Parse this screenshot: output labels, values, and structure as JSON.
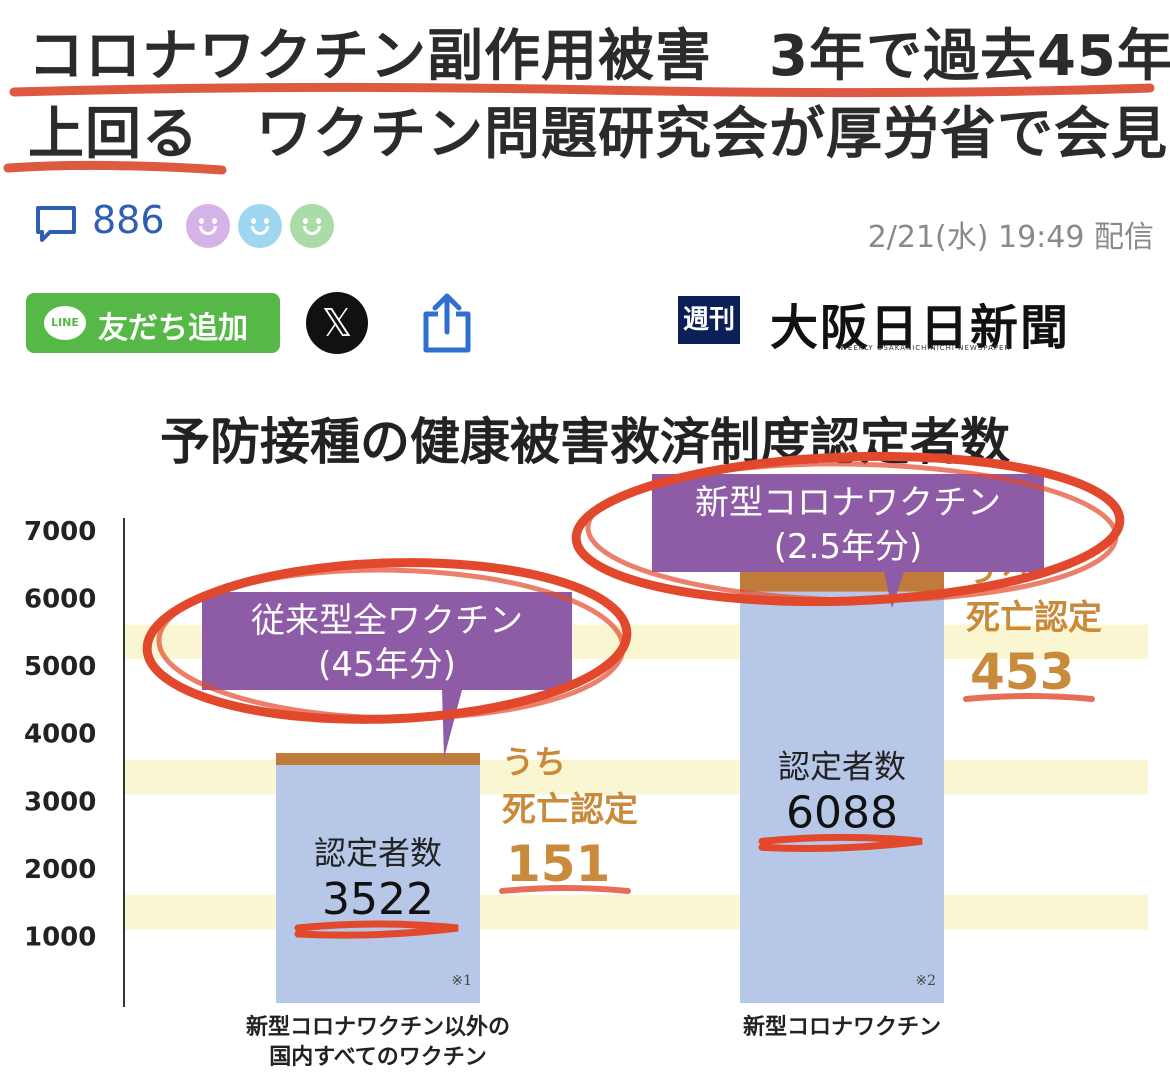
{
  "article": {
    "headline_line1": "コロナワクチン副作用被害　3年で過去45年",
    "headline_line2": "上回る　ワクチン問題研究会が厚労省で会見",
    "comment_count": "886",
    "date": "2/21(水) 19:49 配信",
    "line_button_label": "友だち追加",
    "line_logo_text": "LINE",
    "x_button_label": "𝕏",
    "publisher_weekly": "週刊",
    "publisher_name": "大阪日日新聞",
    "publisher_subtitle": "WEEKLY OSAKANICHINICHI NEWSPAPER"
  },
  "colors": {
    "headline_underline": "#d9472c",
    "bar_fill": "#b7c7e8",
    "death_segment": "#c07a3a",
    "callout_purple": "#8e5ba6",
    "death_text": "#c98a3b",
    "band_yellow": "#fbf6d2",
    "circle_red": "#e2492c"
  },
  "chart_data": {
    "type": "bar",
    "title": "予防接種の健康被害救済制度認定者数",
    "ylim": [
      0,
      7000
    ],
    "yticks": [
      "7000",
      "6000",
      "5000",
      "4000",
      "3000",
      "2000",
      "1000"
    ],
    "yvalues": [
      7000,
      6000,
      5000,
      4000,
      3000,
      2000,
      1000
    ],
    "categories": [
      [
        "新型コロナワクチン以外の",
        "国内すべてのワクチン"
      ],
      [
        "新型コロナワクチン"
      ]
    ],
    "series": [
      {
        "name": "認定者数",
        "values": [
          3522,
          6088
        ]
      },
      {
        "name": "うち死亡認定",
        "values": [
          151,
          453
        ]
      }
    ],
    "bars": [
      {
        "callout": [
          "従来型全ワクチン",
          "(45年分)"
        ],
        "count_label": "認定者数",
        "count_value": "3522",
        "death_label_1": "うち",
        "death_label_2": "死亡認定",
        "death_value": "151",
        "note": "※1"
      },
      {
        "callout": [
          "新型コロナワクチン",
          "(2.5年分)"
        ],
        "count_label": "認定者数",
        "count_value": "6088",
        "death_label_1": "うち",
        "death_label_2": "死亡認定",
        "death_value": "453",
        "note": "※2"
      }
    ]
  }
}
